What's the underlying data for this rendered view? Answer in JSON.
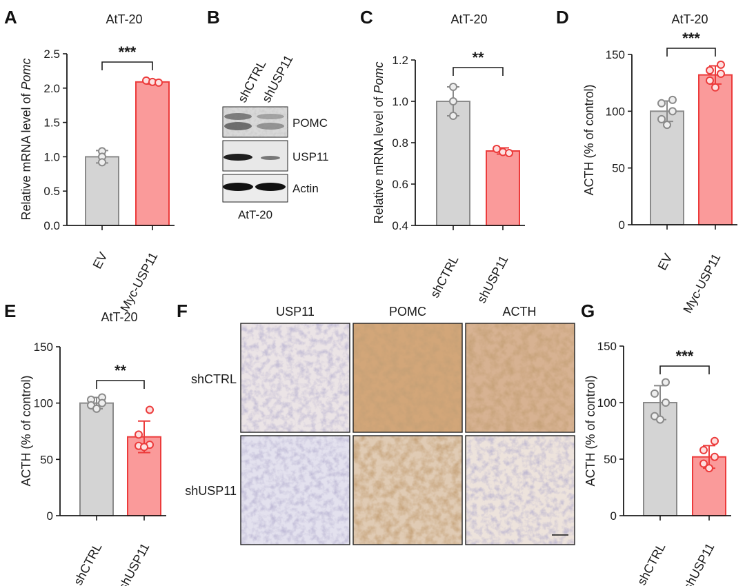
{
  "figure": {
    "panels": {
      "A": "A",
      "B": "B",
      "C": "C",
      "D": "D",
      "E": "E",
      "F": "F",
      "G": "G"
    }
  },
  "colors": {
    "gray_fill": "#d4d4d4",
    "gray_stroke": "#8a8a8a",
    "red_fill": "#fa9a9a",
    "red_stroke": "#ec3b3b",
    "axis": "#1a1a1a"
  },
  "blot": {
    "lanes": [
      "shCTRL",
      "shUSP11"
    ],
    "bands": [
      "POMC",
      "USP11",
      "Actin"
    ],
    "cell_line": "AtT-20"
  },
  "ihc": {
    "columns": [
      "USP11",
      "POMC",
      "ACTH"
    ],
    "rows": [
      "shCTRL",
      "shUSP11"
    ]
  },
  "chart_data": [
    {
      "id": "A",
      "type": "bar",
      "title": "AtT-20",
      "categories": [
        "EV",
        "Myc-USP11"
      ],
      "ylabel": "Relative mRNA level of ",
      "ylabel_italic": "Pomc",
      "ylim": [
        0,
        2.5
      ],
      "yticks": [
        "0.0",
        "0.5",
        "1.0",
        "1.5",
        "2.0",
        "2.5"
      ],
      "values": [
        1.0,
        2.09
      ],
      "errors": [
        0.09,
        0.03
      ],
      "points": [
        [
          1.08,
          1.0,
          0.92
        ],
        [
          2.11,
          2.09,
          2.08
        ]
      ],
      "significance": "***"
    },
    {
      "id": "C",
      "type": "bar",
      "title": "AtT-20",
      "categories": [
        "shCTRL",
        "shUSP11"
      ],
      "ylabel": "Relative mRNA level of ",
      "ylabel_italic": "Pomc",
      "ylim": [
        0.4,
        1.2
      ],
      "yticks": [
        "0.4",
        "0.6",
        "0.8",
        "1.0",
        "1.2"
      ],
      "values": [
        1.0,
        0.76
      ],
      "errors": [
        0.07,
        0.015
      ],
      "points": [
        [
          1.07,
          1.0,
          0.93
        ],
        [
          0.77,
          0.755,
          0.75
        ]
      ],
      "significance": "**"
    },
    {
      "id": "D",
      "type": "bar",
      "title": "AtT-20",
      "categories": [
        "EV",
        "Myc-USP11"
      ],
      "ylabel": "ACTH (% of control)",
      "ylim": [
        0,
        150
      ],
      "yticks": [
        "0",
        "50",
        "100",
        "150"
      ],
      "values": [
        100,
        132
      ],
      "errors": [
        9,
        8
      ],
      "points": [
        [
          110,
          107,
          100,
          93,
          88
        ],
        [
          141,
          136,
          133,
          127,
          121
        ]
      ],
      "significance": "***"
    },
    {
      "id": "E",
      "type": "bar",
      "title": "AtT-20",
      "categories": [
        "shCTRL",
        "shUSP11"
      ],
      "ylabel": "ACTH (% of control)",
      "ylim": [
        0,
        150
      ],
      "yticks": [
        "0",
        "50",
        "100",
        "150"
      ],
      "values": [
        100,
        70
      ],
      "errors": [
        5,
        14
      ],
      "points": [
        [
          105,
          103,
          100,
          98,
          95
        ],
        [
          94,
          72,
          63,
          62,
          61
        ]
      ],
      "significance": "**"
    },
    {
      "id": "G",
      "type": "bar",
      "title": "",
      "categories": [
        "shCTRL",
        "shUSP11"
      ],
      "ylabel": "ACTH (% of control)",
      "ylim": [
        0,
        150
      ],
      "yticks": [
        "0",
        "50",
        "100",
        "150"
      ],
      "values": [
        100,
        52
      ],
      "errors": [
        15,
        10
      ],
      "points": [
        [
          118,
          108,
          100,
          88,
          85
        ],
        [
          66,
          58,
          52,
          46,
          42
        ]
      ],
      "significance": "***"
    }
  ]
}
